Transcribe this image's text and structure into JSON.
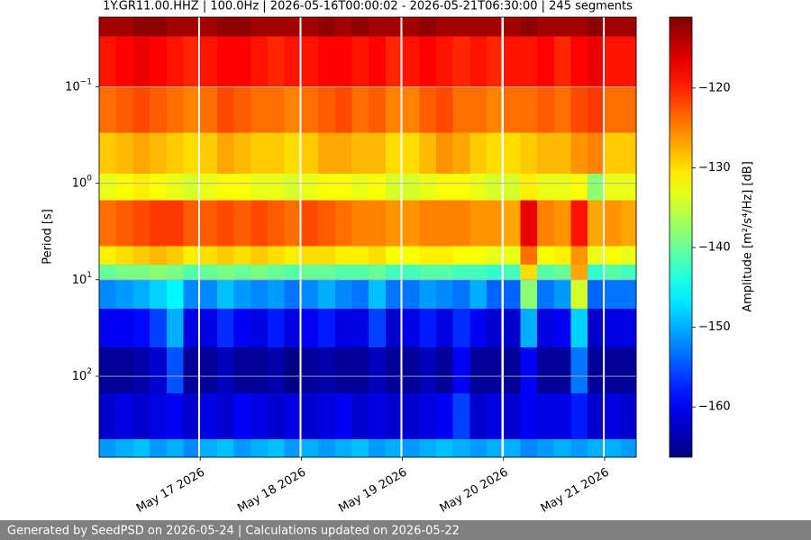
{
  "chart_data": {
    "type": "heatmap",
    "title": "1Y.GR11.00.HHZ | 100.0Hz | 2026-05-16T00:00:02 - 2026-05-21T06:30:00 | 245 segments",
    "y_label": "Period [s]",
    "colorbar_label": "Amplitude [m²/s⁴/Hz] [dB]",
    "footer": "Generated by SeedPSD on 2026-05-24 | Calculations updated on 2026-05-22",
    "colormap": "jet",
    "y_log": true,
    "y_inverted": true,
    "grid": true,
    "xlim": [
      "2026-05-16T00:00",
      "2026-05-21T07:30"
    ],
    "xticks": [
      {
        "value": "2026-05-17",
        "label": "May 17 2026"
      },
      {
        "value": "2026-05-18",
        "label": "May 18 2026"
      },
      {
        "value": "2026-05-19",
        "label": "May 19 2026"
      },
      {
        "value": "2026-05-20",
        "label": "May 20 2026"
      },
      {
        "value": "2026-05-21",
        "label": "May 21 2026"
      }
    ],
    "ylim": [
      0.019,
      690
    ],
    "yticks": [
      {
        "value": 0.1,
        "label": "10",
        "exponent": "−1"
      },
      {
        "value": 1,
        "label": "10",
        "exponent": "0"
      },
      {
        "value": 10,
        "label": "10",
        "exponent": "1"
      },
      {
        "value": 100,
        "label": "10",
        "exponent": "2"
      }
    ],
    "clim": [
      -166.3,
      -111.1
    ],
    "cticks": [
      {
        "value": -120,
        "label": "−120"
      },
      {
        "value": -130,
        "label": "−130"
      },
      {
        "value": -140,
        "label": "−140"
      },
      {
        "value": -150,
        "label": "−150"
      },
      {
        "value": -160,
        "label": "−160"
      }
    ],
    "xbins": [
      "2026-05-16T00:00",
      "2026-05-16T04:00",
      "2026-05-16T08:00",
      "2026-05-16T12:00",
      "2026-05-16T16:00",
      "2026-05-16T20:00",
      "2026-05-16T23:30",
      "2026-05-17T00:00",
      "2026-05-17T04:00",
      "2026-05-17T08:00",
      "2026-05-17T12:00",
      "2026-05-17T16:00",
      "2026-05-17T20:00",
      "2026-05-17T23:30",
      "2026-05-18T00:00",
      "2026-05-18T04:00",
      "2026-05-18T08:00",
      "2026-05-18T12:00",
      "2026-05-18T16:00",
      "2026-05-18T20:00",
      "2026-05-18T23:30",
      "2026-05-19T00:00",
      "2026-05-19T04:00",
      "2026-05-19T08:00",
      "2026-05-19T12:00",
      "2026-05-19T16:00",
      "2026-05-19T20:00",
      "2026-05-19T23:30",
      "2026-05-20T00:00",
      "2026-05-20T04:00",
      "2026-05-20T08:00",
      "2026-05-20T12:00",
      "2026-05-20T16:00",
      "2026-05-20T20:00",
      "2026-05-20T23:30",
      "2026-05-21T00:00",
      "2026-05-21T04:00",
      "2026-05-21T07:30"
    ],
    "ybins": [
      0.019,
      0.03,
      0.1,
      0.3,
      0.8,
      1.5,
      4.5,
      7,
      10,
      20,
      50,
      150,
      450,
      690
    ],
    "z": [
      [
        -113,
        -113,
        -112,
        -112,
        -113,
        -113,
        null,
        -113,
        -112,
        -112,
        -113,
        -113,
        -113,
        null,
        -113,
        -112,
        -113,
        -112,
        -113,
        -113,
        null,
        -113,
        -112,
        -113,
        -113,
        -113,
        -113,
        null,
        -113,
        -112,
        -113,
        -113,
        -113,
        -112,
        null,
        -113,
        -113
      ],
      [
        -119,
        -118,
        -117,
        -118,
        -119,
        -120,
        null,
        -119,
        -118,
        -118,
        -119,
        -120,
        -119,
        null,
        -119,
        -118,
        -118,
        -119,
        -118,
        -120,
        null,
        -119,
        -118,
        -119,
        -120,
        -119,
        -120,
        null,
        -119,
        -119,
        -118,
        -120,
        -118,
        -117,
        null,
        -119,
        -119
      ],
      [
        -124,
        -123,
        -122,
        -123,
        -124,
        -125,
        null,
        -124,
        -122,
        -123,
        -124,
        -124,
        -125,
        null,
        -124,
        -123,
        -122,
        -124,
        -123,
        -125,
        null,
        -125,
        -123,
        -122,
        -124,
        -124,
        -125,
        null,
        -124,
        -124,
        -123,
        -124,
        -122,
        -121,
        null,
        -124,
        -124
      ],
      [
        -129,
        -128,
        -127,
        -128,
        -129,
        -130,
        null,
        -129,
        -127,
        -128,
        -129,
        -129,
        -130,
        null,
        -129,
        -127,
        -127,
        -128,
        -128,
        -130,
        null,
        -130,
        -128,
        -126,
        -127,
        -129,
        -130,
        null,
        -130,
        -129,
        -128,
        -128,
        -126,
        -125,
        null,
        -129,
        -129
      ],
      [
        -133,
        -132,
        -131,
        -132,
        -133,
        -134,
        null,
        -133,
        -132,
        -132,
        -133,
        -133,
        -134,
        null,
        -133,
        -132,
        -132,
        -133,
        -132,
        -134,
        null,
        -134,
        -133,
        -132,
        -132,
        -133,
        -134,
        null,
        -134,
        -131,
        -133,
        -133,
        -132,
        -138,
        null,
        -133,
        -133
      ],
      [
        -124,
        -123,
        -122,
        -121,
        -121,
        -123,
        null,
        -123,
        -122,
        -123,
        -122,
        -123,
        -124,
        null,
        -122,
        -123,
        -124,
        -125,
        -125,
        -126,
        null,
        -126,
        -125,
        -125,
        -125,
        -126,
        -126,
        null,
        -127,
        -117,
        -125,
        -126,
        -119,
        -127,
        null,
        -126,
        -127
      ],
      [
        -131,
        -130,
        -129,
        -128,
        -129,
        -131,
        null,
        -130,
        -129,
        -130,
        -129,
        -130,
        -131,
        null,
        -130,
        -130,
        -131,
        -131,
        -130,
        -132,
        null,
        -132,
        -131,
        -131,
        -132,
        -132,
        -133,
        null,
        -133,
        -124,
        -132,
        -131,
        -126,
        -133,
        null,
        -132,
        -133
      ],
      [
        -140,
        -139,
        -139,
        -138,
        -139,
        -141,
        null,
        -140,
        -139,
        -140,
        -139,
        -140,
        -141,
        null,
        -140,
        -140,
        -141,
        -141,
        -140,
        -142,
        null,
        -142,
        -141,
        -141,
        -142,
        -142,
        -143,
        null,
        -142,
        -130,
        -141,
        -140,
        -127,
        -143,
        null,
        -141,
        -142
      ],
      [
        -152,
        -151,
        -150,
        -148,
        -146,
        -152,
        null,
        -152,
        -149,
        -151,
        -152,
        -151,
        -153,
        null,
        -152,
        -150,
        -152,
        -153,
        -149,
        -153,
        null,
        -153,
        -151,
        -152,
        -153,
        -150,
        -154,
        null,
        -154,
        -138,
        -153,
        -151,
        -134,
        -154,
        null,
        -153,
        -153
      ],
      [
        -160,
        -160,
        -159,
        -156,
        -150,
        -161,
        null,
        -161,
        -157,
        -160,
        -161,
        -158,
        -161,
        null,
        -160,
        -158,
        -161,
        -161,
        -156,
        -162,
        null,
        -161,
        -158,
        -161,
        -157,
        -160,
        -162,
        null,
        -162,
        -150,
        -161,
        -160,
        -148,
        -162,
        null,
        -161,
        -161
      ],
      [
        -165,
        -165,
        -164,
        -162,
        -155,
        -165,
        null,
        -165,
        -163,
        -165,
        -165,
        -164,
        -166,
        null,
        -165,
        -164,
        -165,
        -165,
        -163,
        -165,
        null,
        -165,
        -163,
        -165,
        -160,
        -165,
        -165,
        null,
        -165,
        -160,
        -165,
        -165,
        -153,
        -165,
        null,
        -165,
        -165
      ],
      [
        -162,
        -161,
        -162,
        -161,
        -160,
        -162,
        null,
        -161,
        -162,
        -160,
        -161,
        -162,
        -161,
        null,
        -162,
        -161,
        -160,
        -162,
        -161,
        -162,
        null,
        -162,
        -161,
        -160,
        -156,
        -162,
        -161,
        null,
        -162,
        -160,
        -161,
        -161,
        -158,
        -162,
        null,
        -161,
        -162
      ],
      [
        -151,
        -150,
        -149,
        -151,
        -150,
        -152,
        null,
        -150,
        -149,
        -151,
        -150,
        -149,
        -151,
        null,
        -150,
        -151,
        -150,
        -149,
        -151,
        -150,
        null,
        -151,
        -150,
        -149,
        -150,
        -151,
        -150,
        null,
        -150,
        -152,
        -151,
        -150,
        -151,
        -150,
        null,
        -150,
        -151
      ]
    ]
  }
}
